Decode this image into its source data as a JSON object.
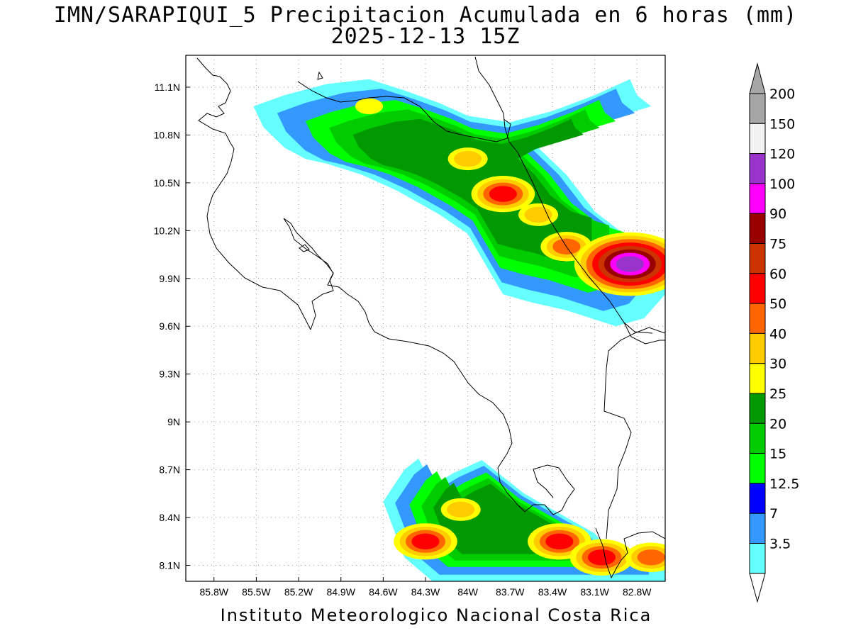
{
  "title": {
    "line1": "IMN/SARAPIQUI_5 Precipitacion Acumulada en 6 horas (mm)",
    "line2": "2025-12-13 15Z"
  },
  "footer": "Instituto Meteorologico Nacional Costa Rica",
  "map": {
    "lon_range": [
      -86.0,
      -82.6
    ],
    "lat_range": [
      8.0,
      11.3
    ],
    "lon_ticks": [
      {
        "value": -85.8,
        "label": "85.8W"
      },
      {
        "value": -85.5,
        "label": "85.5W"
      },
      {
        "value": -85.2,
        "label": "85.2W"
      },
      {
        "value": -84.9,
        "label": "84.9W"
      },
      {
        "value": -84.6,
        "label": "84.6W"
      },
      {
        "value": -84.3,
        "label": "84.3W"
      },
      {
        "value": -84.0,
        "label": "84W"
      },
      {
        "value": -83.7,
        "label": "83.7W"
      },
      {
        "value": -83.4,
        "label": "83.4W"
      },
      {
        "value": -83.1,
        "label": "83.1W"
      },
      {
        "value": -82.8,
        "label": "82.8W"
      }
    ],
    "lat_ticks": [
      {
        "value": 11.1,
        "label": "11.1N"
      },
      {
        "value": 10.8,
        "label": "10.8N"
      },
      {
        "value": 10.5,
        "label": "10.5N"
      },
      {
        "value": 10.2,
        "label": "10.2N"
      },
      {
        "value": 9.9,
        "label": "9.9N"
      },
      {
        "value": 9.6,
        "label": "9.6N"
      },
      {
        "value": 9.3,
        "label": "9.3N"
      },
      {
        "value": 9.0,
        "label": "9N"
      },
      {
        "value": 8.7,
        "label": "8.7N"
      },
      {
        "value": 8.4,
        "label": "8.4N"
      },
      {
        "value": 8.1,
        "label": "8.1N"
      }
    ],
    "grid": "dotted"
  },
  "colorbar": {
    "levels": [
      {
        "label": "3.5",
        "color": "#66ffff"
      },
      {
        "label": "7",
        "color": "#3399ff"
      },
      {
        "label": "12.5",
        "color": "#0000ff"
      },
      {
        "label": "15",
        "color": "#00ff00"
      },
      {
        "label": "20",
        "color": "#00cc00"
      },
      {
        "label": "25",
        "color": "#009900"
      },
      {
        "label": "30",
        "color": "#ffff00"
      },
      {
        "label": "40",
        "color": "#ffcc00"
      },
      {
        "label": "50",
        "color": "#ff6600"
      },
      {
        "label": "60",
        "color": "#ff0000"
      },
      {
        "label": "75",
        "color": "#cc3300"
      },
      {
        "label": "90",
        "color": "#990000"
      },
      {
        "label": "100",
        "color": "#ff00ff"
      },
      {
        "label": "120",
        "color": "#9933cc"
      },
      {
        "label": "150",
        "color": "#f2f2f2"
      },
      {
        "label": "200",
        "color": "#a6a6a6"
      }
    ],
    "over_color": "#a6a6a6",
    "under_color": "#ffffff"
  },
  "precip_bands": [
    {
      "name": "north-band",
      "points_lonlat": [
        [
          -85.52,
          10.98
        ],
        [
          -85.3,
          11.05
        ],
        [
          -85.0,
          11.12
        ],
        [
          -84.7,
          11.15
        ],
        [
          -84.45,
          11.08
        ],
        [
          -84.2,
          11.0
        ],
        [
          -84.0,
          10.92
        ],
        [
          -83.7,
          10.88
        ],
        [
          -83.4,
          10.95
        ],
        [
          -83.1,
          11.05
        ],
        [
          -82.85,
          11.15
        ],
        [
          -82.8,
          11.05
        ],
        [
          -82.7,
          10.98
        ],
        [
          -83.0,
          10.9
        ],
        [
          -83.3,
          10.82
        ],
        [
          -83.5,
          10.72
        ],
        [
          -83.3,
          10.55
        ],
        [
          -83.1,
          10.32
        ],
        [
          -82.85,
          10.15
        ],
        [
          -82.6,
          10.08
        ],
        [
          -82.6,
          9.8
        ],
        [
          -82.75,
          9.65
        ],
        [
          -82.95,
          9.6
        ],
        [
          -83.3,
          9.7
        ],
        [
          -83.55,
          9.75
        ],
        [
          -83.75,
          9.8
        ],
        [
          -83.85,
          9.95
        ],
        [
          -84.0,
          10.18
        ],
        [
          -84.2,
          10.3
        ],
        [
          -84.5,
          10.45
        ],
        [
          -84.75,
          10.55
        ],
        [
          -85.0,
          10.62
        ],
        [
          -85.15,
          10.65
        ],
        [
          -85.3,
          10.72
        ],
        [
          -85.45,
          10.85
        ]
      ]
    },
    {
      "name": "south-band",
      "points_lonlat": [
        [
          -84.6,
          8.5
        ],
        [
          -84.45,
          8.7
        ],
        [
          -84.35,
          8.77
        ],
        [
          -84.25,
          8.6
        ],
        [
          -84.1,
          8.68
        ],
        [
          -83.9,
          8.76
        ],
        [
          -83.6,
          8.55
        ],
        [
          -83.4,
          8.45
        ],
        [
          -83.1,
          8.3
        ],
        [
          -82.9,
          8.1
        ],
        [
          -82.6,
          8.15
        ],
        [
          -82.6,
          8.0
        ],
        [
          -84.25,
          8.0
        ],
        [
          -84.45,
          8.15
        ]
      ]
    }
  ],
  "precip_cores": [
    {
      "lon": -84.0,
      "lat": 10.65,
      "level": "40"
    },
    {
      "lon": -83.75,
      "lat": 10.43,
      "level": "60"
    },
    {
      "lon": -83.5,
      "lat": 10.3,
      "level": "40"
    },
    {
      "lon": -83.3,
      "lat": 10.1,
      "level": "50"
    },
    {
      "lon": -82.9,
      "lat": 9.98,
      "level": "60"
    },
    {
      "lon": -82.85,
      "lat": 9.99,
      "level": "120"
    },
    {
      "lon": -84.7,
      "lat": 10.98,
      "level": "30"
    },
    {
      "lon": -84.3,
      "lat": 8.25,
      "level": "60"
    },
    {
      "lon": -84.05,
      "lat": 8.45,
      "level": "40"
    },
    {
      "lon": -83.35,
      "lat": 8.25,
      "level": "60"
    },
    {
      "lon": -83.05,
      "lat": 8.15,
      "level": "60"
    },
    {
      "lon": -82.7,
      "lat": 8.15,
      "level": "50"
    }
  ]
}
